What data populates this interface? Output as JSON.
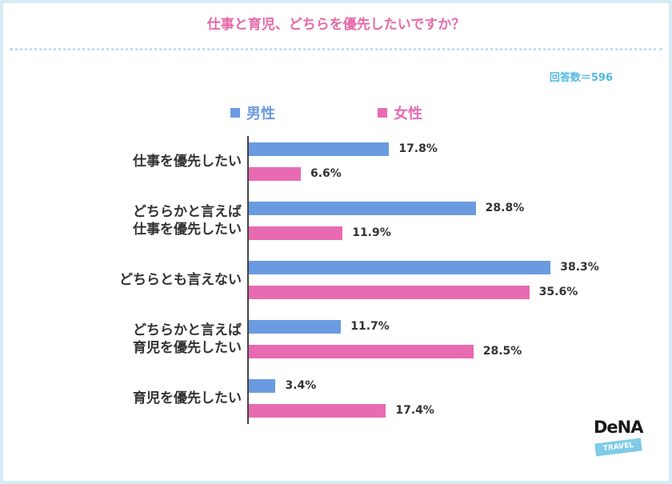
{
  "title": "仕事と育児、どちらを優先したいですか？",
  "respondents": "回答数＝596",
  "colors": {
    "male": "#6a9be0",
    "female": "#e86bb2",
    "title": "#e66aa8",
    "respondents": "#52b9df",
    "border": "#d6ecf6"
  },
  "legend": [
    {
      "label": "男性",
      "color": "#6a9be0"
    },
    {
      "label": "女性",
      "color": "#e86bb2"
    }
  ],
  "chart_data": {
    "type": "bar",
    "orientation": "horizontal",
    "title": "仕事と育児、どちらを優先したいですか？",
    "categories": [
      [
        "仕事を優先したい"
      ],
      [
        "どちらかと言えば",
        "仕事を優先したい"
      ],
      [
        "どちらとも言えない"
      ],
      [
        "どちらかと言えば",
        "育児を優先したい"
      ],
      [
        "育児を優先したい"
      ]
    ],
    "series": [
      {
        "name": "男性",
        "values": [
          17.8,
          28.8,
          38.3,
          11.7,
          3.4
        ],
        "labels": [
          "17.8%",
          "28.8%",
          "38.3%",
          "11.7%",
          "3.4%"
        ]
      },
      {
        "name": "女性",
        "values": [
          6.6,
          11.9,
          35.6,
          28.5,
          17.4
        ],
        "labels": [
          "6.6%",
          "11.9%",
          "35.6%",
          "28.5%",
          "17.4%"
        ]
      }
    ],
    "unit": "%",
    "xlim": [
      0,
      40
    ],
    "grid": false,
    "legend_position": "top"
  },
  "logo": {
    "name": "DeNA",
    "tag": "TRAVEL"
  }
}
